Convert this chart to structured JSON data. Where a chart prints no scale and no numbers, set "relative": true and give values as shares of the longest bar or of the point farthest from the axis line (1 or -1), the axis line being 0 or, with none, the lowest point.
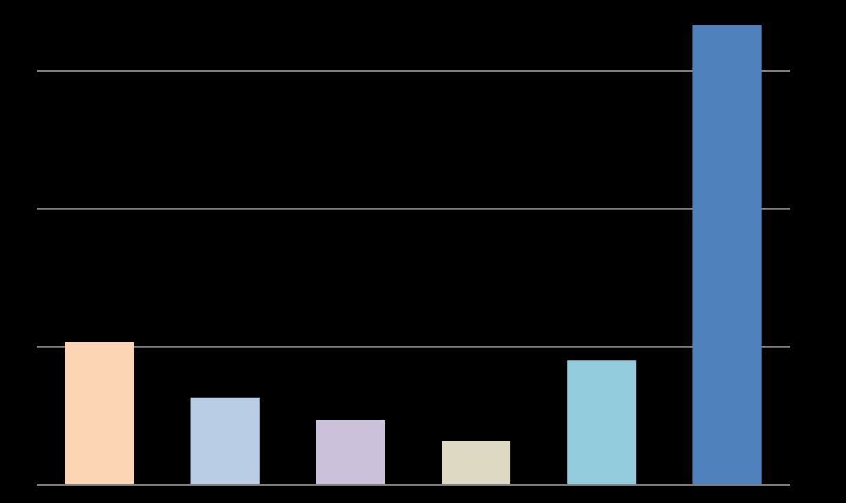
{
  "chart_data": {
    "type": "bar",
    "relative": true,
    "categories": [
      null,
      null,
      null,
      null,
      null,
      null
    ],
    "values": [
      0.31,
      0.19,
      0.14,
      0.095,
      0.27,
      1
    ],
    "colors": [
      "#fcd5b5",
      "#b9cde5",
      "#ccc1da",
      "#ddd9c3",
      "#93cddd",
      "#4f81bd"
    ],
    "grid": "y",
    "tick_labels": false
  }
}
